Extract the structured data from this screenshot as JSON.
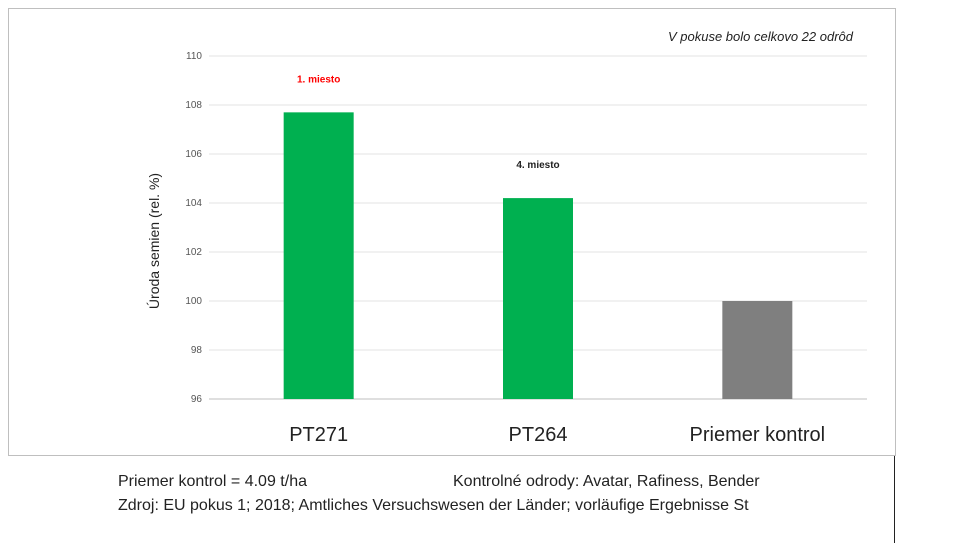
{
  "chart_data": {
    "type": "bar",
    "categories": [
      "PT271",
      "PT264",
      "Priemer kontrol"
    ],
    "values": [
      107.7,
      104.2,
      100.0
    ],
    "colors": [
      "#00b050",
      "#00b050",
      "#7f7f7f"
    ],
    "data_labels": [
      "1. miesto",
      "4. miesto",
      ""
    ],
    "data_label_colors": [
      "#ff0000",
      "#222222",
      "#222222"
    ],
    "ylabel": "Úroda semien (rel. %)",
    "ylim": [
      96,
      110
    ],
    "yticks": [
      96,
      98,
      100,
      102,
      104,
      106,
      108,
      110
    ],
    "grid": true,
    "annotation": "V pokuse bolo celkovo 22 odrôd"
  },
  "footer": {
    "average": "Priemer kontrol = 4.09 t/ha",
    "controls": "Kontrolné odrody: Avatar, Rafiness, Bender",
    "source": "Zdroj: EU pokus 1; 2018; Amtliches Versuchswesen  der Länder; vorläufige Ergebnisse St"
  }
}
